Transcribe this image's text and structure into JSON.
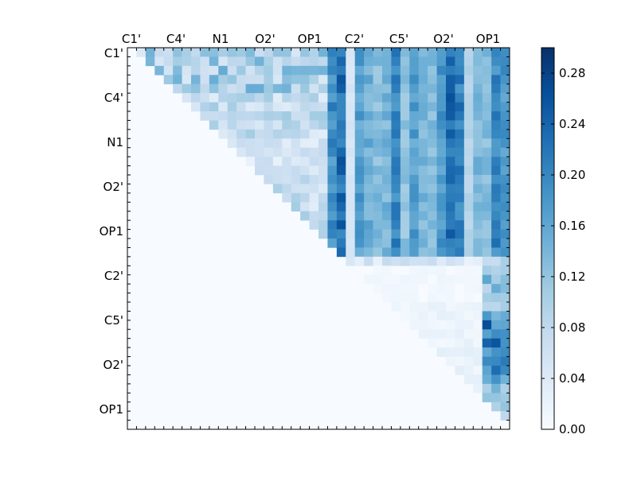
{
  "chart_data": {
    "type": "heatmap",
    "title": "",
    "xlabel": "",
    "ylabel": "",
    "grid": false,
    "x_tick_labels": [
      "C1'",
      "C4'",
      "N1",
      "O2'",
      "OP1",
      "C2'",
      "C5'",
      "O2'",
      "OP1"
    ],
    "y_tick_labels": [
      "C1'",
      "C4'",
      "N1",
      "O2'",
      "OP1",
      "C2'",
      "C5'",
      "O2'",
      "OP1"
    ],
    "colorbar": {
      "colormap": "Blues",
      "vmin": 0.0,
      "vmax": 0.3,
      "ticks": [
        0.0,
        0.04,
        0.08,
        0.12,
        0.16,
        0.2,
        0.24,
        0.28
      ],
      "tick_labels": [
        "0.00",
        "0.04",
        "0.08",
        "0.12",
        "0.16",
        "0.20",
        "0.24",
        "0.28"
      ]
    },
    "matrix_size": 42,
    "upper_triangle_only": true,
    "cross_block_start_col": 22,
    "second_block_start_row": 23,
    "row_group_means": [
      0.14,
      0.1,
      0.07,
      0.1,
      0.12,
      0.02,
      0.04,
      0.05,
      0.04
    ],
    "cross_block_column_means": [
      0.19,
      0.23,
      0.05,
      0.17,
      0.15,
      0.13,
      0.14,
      0.2,
      0.12,
      0.17,
      0.14,
      0.13,
      0.18,
      0.23,
      0.21,
      0.09,
      0.14,
      0.13,
      0.2,
      0.18,
      0.1,
      0.15
    ],
    "within_block2_last_column_means": [
      0.1,
      0.13,
      0.12,
      0.11,
      0.16,
      0.21,
      0.24,
      0.2,
      0.18,
      0.16,
      0.14,
      0.12,
      0.1,
      0.08
    ]
  }
}
